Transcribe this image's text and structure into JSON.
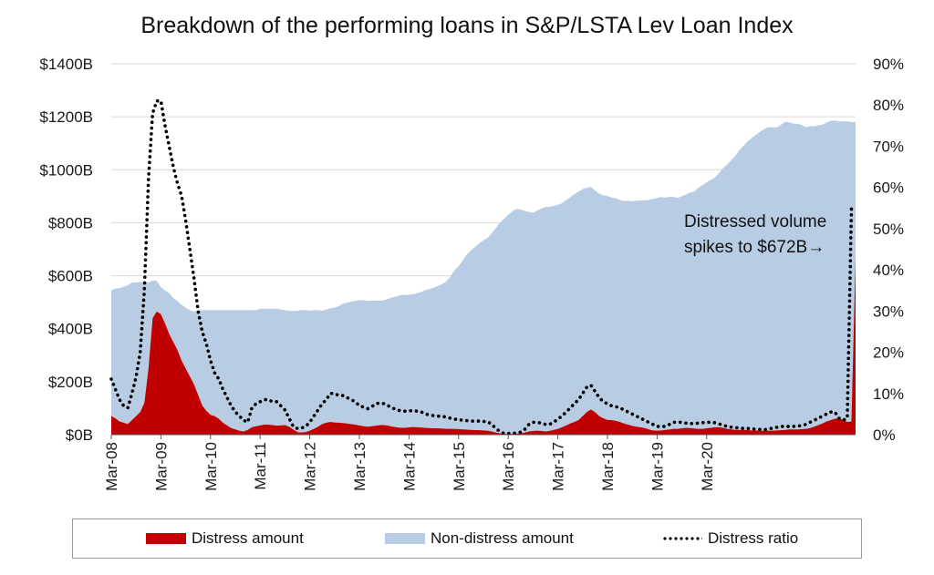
{
  "chart_data": {
    "type": "area",
    "title": "Breakdown of the performing loans in S&P/LSTA Lev Loan Index",
    "x_ticks": [
      "Mar-08",
      "Mar-09",
      "Mar-10",
      "Mar-11",
      "Mar-12",
      "Mar-13",
      "Mar-14",
      "Mar-15",
      "Mar-16",
      "Mar-17",
      "Mar-18",
      "Mar-19",
      "Mar-20"
    ],
    "y_left_ticks": [
      "$0B",
      "$200B",
      "$400B",
      "$600B",
      "$800B",
      "$1000B",
      "$1200B",
      "$1400B"
    ],
    "y_left_lim": [
      0,
      1400
    ],
    "y_right_ticks": [
      "0%",
      "10%",
      "20%",
      "30%",
      "40%",
      "50%",
      "60%",
      "70%",
      "80%",
      "90%"
    ],
    "y_right_lim": [
      0,
      90
    ],
    "grid": true,
    "legend_position": "bottom",
    "x_start": "Mar-08",
    "x_end": "Mar-20",
    "x_step_months": 1,
    "series": [
      {
        "name": "Distress amount",
        "type": "area",
        "axis": "left",
        "color": "#c00000",
        "values": [
          70,
          62,
          50,
          45,
          40,
          55,
          70,
          85,
          120,
          250,
          440,
          465,
          455,
          420,
          380,
          350,
          320,
          280,
          250,
          220,
          190,
          150,
          110,
          90,
          75,
          70,
          60,
          45,
          35,
          25,
          20,
          15,
          12,
          18,
          28,
          32,
          35,
          38,
          38,
          36,
          34,
          35,
          36,
          30,
          20,
          10,
          8,
          10,
          15,
          22,
          30,
          40,
          45,
          48,
          46,
          45,
          44,
          42,
          40,
          38,
          35,
          32,
          30,
          32,
          34,
          36,
          36,
          34,
          30,
          28,
          26,
          26,
          28,
          29,
          28,
          27,
          26,
          25,
          24,
          24,
          23,
          22,
          22,
          22,
          21,
          20,
          19,
          18,
          17,
          17,
          16,
          15,
          12,
          8,
          5,
          3,
          3,
          3,
          4,
          5,
          8,
          12,
          14,
          15,
          14,
          12,
          14,
          18,
          22,
          28,
          35,
          42,
          48,
          55,
          70,
          85,
          95,
          85,
          70,
          62,
          56,
          55,
          52,
          48,
          42,
          38,
          33,
          30,
          28,
          25,
          20,
          16,
          15,
          16,
          18,
          20,
          22,
          22,
          24,
          26,
          25,
          23,
          22,
          22,
          24,
          26,
          28,
          28,
          26,
          22,
          20,
          18,
          18,
          18,
          17,
          16,
          16,
          15,
          15,
          15,
          15,
          16,
          17,
          18,
          20,
          20,
          20,
          21,
          22,
          25,
          30,
          36,
          42,
          50,
          55,
          60,
          62,
          55,
          48,
          50,
          672
        ]
      },
      {
        "name": "Non-distress amount",
        "type": "area",
        "axis": "left",
        "color": "#b8cce4",
        "values": [
          475,
          490,
          503,
          514,
          524,
          519,
          505,
          491,
          455,
          325,
          142,
          115,
          102,
          124,
          155,
          165,
          185,
          210,
          230,
          250,
          275,
          320,
          360,
          380,
          395,
          400,
          410,
          425,
          435,
          445,
          450,
          455,
          458,
          452,
          442,
          438,
          440,
          437,
          437,
          439,
          441,
          438,
          434,
          438,
          447,
          458,
          462,
          460,
          453,
          448,
          440,
          428,
          427,
          430,
          434,
          440,
          451,
          456,
          462,
          467,
          473,
          476,
          475,
          475,
          472,
          470,
          472,
          479,
          488,
          494,
          501,
          502,
          500,
          501,
          506,
          512,
          520,
          525,
          531,
          537,
          546,
          556,
          575,
          598,
          615,
          638,
          661,
          678,
          692,
          705,
          718,
          727,
          748,
          772,
          795,
          812,
          827,
          840,
          848,
          845,
          837,
          829,
          823,
          831,
          839,
          847,
          846,
          846,
          845,
          846,
          850,
          854,
          860,
          862,
          857,
          847,
          840,
          837,
          840,
          842,
          845,
          840,
          840,
          838,
          840,
          845,
          848,
          853,
          856,
          860,
          866,
          874,
          879,
          881,
          877,
          878,
          875,
          872,
          876,
          881,
          889,
          895,
          910,
          920,
          929,
          936,
          943,
          960,
          981,
          998,
          1018,
          1036,
          1058,
          1074,
          1092,
          1105,
          1117,
          1129,
          1139,
          1146,
          1145,
          1144,
          1154,
          1163,
          1159,
          1154,
          1153,
          1148,
          1139,
          1140,
          1134,
          1132,
          1128,
          1128,
          1130,
          1126,
          1120,
          1128,
          1135,
          1130,
          508
        ]
      },
      {
        "name": "Distress ratio",
        "type": "line",
        "axis": "right",
        "style": "dotted",
        "color": "#000000",
        "values": [
          13.5,
          11,
          8.5,
          7,
          6.5,
          10,
          14,
          20,
          35,
          62,
          78,
          81,
          81,
          75,
          70,
          65,
          61,
          58,
          52,
          45,
          38,
          30,
          25,
          22,
          18,
          15,
          13.5,
          11,
          9,
          7,
          5.5,
          4.5,
          3.5,
          3,
          6.5,
          7.5,
          8,
          8.5,
          8.5,
          8,
          8,
          7,
          6,
          4,
          2,
          1.5,
          1.6,
          2,
          3,
          4.5,
          6,
          7.5,
          8.5,
          10,
          10,
          9.5,
          9.5,
          9,
          8.5,
          8,
          7,
          6.7,
          6.3,
          6.8,
          7.5,
          7.7,
          7.5,
          7,
          6.5,
          6,
          5.8,
          5.7,
          5.8,
          5.8,
          5.7,
          5.5,
          5,
          4.8,
          4.6,
          4.5,
          4.4,
          4.3,
          4,
          3.8,
          3.6,
          3.5,
          3.4,
          3.3,
          3.3,
          3.3,
          3.2,
          3.2,
          2.5,
          1.5,
          0.8,
          0.3,
          0.3,
          0.3,
          0.4,
          0.6,
          1.3,
          2.5,
          3,
          3,
          2.8,
          2.5,
          2.5,
          3,
          3.8,
          4.5,
          5.5,
          6.5,
          7.5,
          8.5,
          10,
          11.5,
          12,
          10.5,
          9,
          8,
          7.5,
          7,
          6.8,
          6.5,
          6,
          5.5,
          5,
          4.5,
          4,
          3.5,
          3,
          2.5,
          2,
          2,
          2,
          2.5,
          3,
          3,
          3,
          2.8,
          2.7,
          2.7,
          2.8,
          2.9,
          3,
          3,
          2.9,
          2.6,
          2.3,
          2,
          1.8,
          1.7,
          1.6,
          1.5,
          1.5,
          1.4,
          1.3,
          1.3,
          1.2,
          1.4,
          1.6,
          1.8,
          2,
          2,
          2,
          2,
          2.1,
          2.2,
          2.5,
          3,
          3.5,
          4,
          4.5,
          5,
          5.5,
          5.5,
          4,
          3.5,
          4,
          55
        ]
      }
    ],
    "annotation": {
      "line1": "Distressed volume",
      "line2": "spikes to $672B→"
    }
  }
}
